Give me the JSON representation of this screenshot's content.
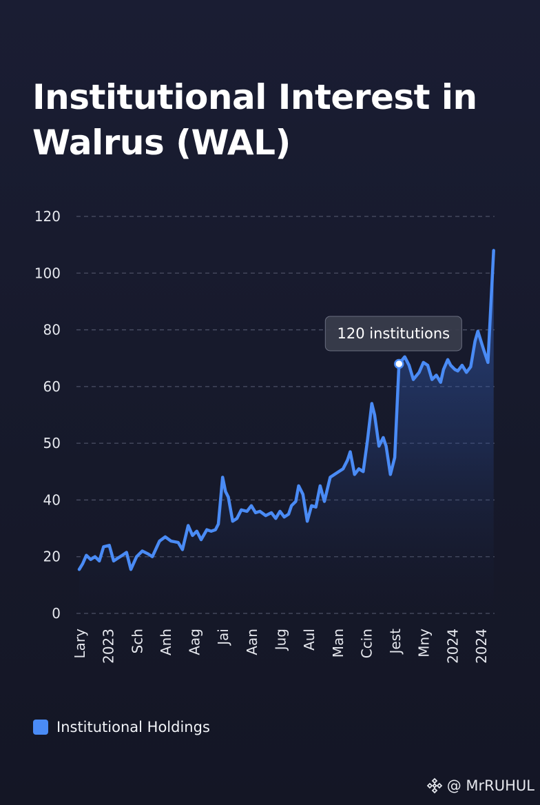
{
  "title_line1": "Institutional Interest in",
  "title_line2": "Walrus (WAL)",
  "legend": {
    "label": "Institutional Holdings",
    "color": "#4a8bf5"
  },
  "tooltip": {
    "text": "120 institutions"
  },
  "watermark": {
    "handle": "@ MrRUHUL",
    "icon": "binance-diamond-icon"
  },
  "colors": {
    "background": "#171a2c",
    "line": "#4a8bf5",
    "grid": "#4c5066",
    "tick_text": "#e6e8ee"
  },
  "chart_data": {
    "type": "area",
    "title": "Institutional Interest in Walrus (WAL)",
    "xlabel": "",
    "ylabel": "",
    "y_ticks": [
      "0",
      "20",
      "40",
      "50",
      "60",
      "80",
      "100",
      "120"
    ],
    "x_ticks": [
      "Lary",
      "2023",
      "Sch",
      "Anh",
      "Aag",
      "Jai",
      "Aan",
      "Jug",
      "Aul",
      "Man",
      "Ccin",
      "Jest",
      "Mny",
      "2024",
      "2024"
    ],
    "grid": true,
    "legend_position": "bottom-left",
    "series": [
      {
        "name": "Institutional Holdings",
        "note": "values in data units read against the printed tick scale (tick rows are evenly spaced); x = index along the time axis (0 = first tick, 14 = last tick)",
        "points": [
          [
            0.0,
            15.5
          ],
          [
            0.12,
            17.5
          ],
          [
            0.25,
            20.5
          ],
          [
            0.4,
            19.0
          ],
          [
            0.55,
            20.0
          ],
          [
            0.7,
            18.5
          ],
          [
            0.85,
            23.5
          ],
          [
            1.05,
            24.0
          ],
          [
            1.2,
            18.5
          ],
          [
            1.35,
            19.5
          ],
          [
            1.5,
            20.5
          ],
          [
            1.65,
            21.5
          ],
          [
            1.8,
            15.5
          ],
          [
            2.0,
            20.0
          ],
          [
            2.2,
            22.0
          ],
          [
            2.4,
            21.0
          ],
          [
            2.55,
            20.0
          ],
          [
            2.8,
            25.5
          ],
          [
            3.0,
            27.0
          ],
          [
            3.2,
            25.5
          ],
          [
            3.45,
            25.0
          ],
          [
            3.6,
            22.5
          ],
          [
            3.8,
            31.0
          ],
          [
            3.95,
            27.5
          ],
          [
            4.1,
            29.0
          ],
          [
            4.25,
            26.0
          ],
          [
            4.45,
            29.5
          ],
          [
            4.6,
            29.0
          ],
          [
            4.75,
            29.5
          ],
          [
            4.85,
            31.5
          ],
          [
            5.0,
            44.0
          ],
          [
            5.1,
            41.5
          ],
          [
            5.2,
            40.5
          ],
          [
            5.35,
            32.5
          ],
          [
            5.5,
            33.5
          ],
          [
            5.65,
            36.5
          ],
          [
            5.85,
            36.0
          ],
          [
            6.0,
            38.0
          ],
          [
            6.15,
            35.5
          ],
          [
            6.3,
            36.0
          ],
          [
            6.5,
            34.5
          ],
          [
            6.7,
            35.5
          ],
          [
            6.85,
            33.5
          ],
          [
            7.0,
            36.0
          ],
          [
            7.15,
            34.0
          ],
          [
            7.3,
            35.0
          ],
          [
            7.4,
            38.0
          ],
          [
            7.55,
            39.5
          ],
          [
            7.65,
            42.5
          ],
          [
            7.8,
            41.0
          ],
          [
            7.95,
            32.5
          ],
          [
            8.1,
            38.0
          ],
          [
            8.25,
            37.5
          ],
          [
            8.4,
            42.5
          ],
          [
            8.55,
            39.5
          ],
          [
            8.75,
            44.0
          ],
          [
            8.9,
            44.5
          ],
          [
            9.05,
            45.0
          ],
          [
            9.2,
            45.5
          ],
          [
            9.35,
            47.0
          ],
          [
            9.45,
            48.5
          ],
          [
            9.6,
            44.5
          ],
          [
            9.75,
            45.5
          ],
          [
            9.9,
            45.0
          ],
          [
            10.05,
            50.5
          ],
          [
            10.2,
            57.0
          ],
          [
            10.3,
            55.0
          ],
          [
            10.45,
            49.5
          ],
          [
            10.6,
            51.0
          ],
          [
            10.7,
            49.5
          ],
          [
            10.85,
            44.5
          ],
          [
            11.0,
            47.5
          ],
          [
            11.15,
            68.0
          ],
          [
            11.35,
            70.5
          ],
          [
            11.5,
            67.5
          ],
          [
            11.65,
            62.5
          ],
          [
            11.85,
            65.0
          ],
          [
            12.0,
            68.5
          ],
          [
            12.15,
            67.5
          ],
          [
            12.3,
            62.5
          ],
          [
            12.45,
            64.0
          ],
          [
            12.6,
            61.5
          ],
          [
            12.7,
            66.0
          ],
          [
            12.85,
            69.5
          ],
          [
            12.95,
            67.5
          ],
          [
            13.1,
            66.0
          ],
          [
            13.2,
            65.5
          ],
          [
            13.35,
            67.5
          ],
          [
            13.5,
            65.0
          ],
          [
            13.65,
            67.0
          ],
          [
            13.8,
            76.0
          ],
          [
            13.9,
            79.5
          ],
          [
            14.1,
            73.0
          ],
          [
            14.25,
            68.5
          ],
          [
            14.45,
            108.0
          ]
        ],
        "highlight": {
          "x": 11.15,
          "y": 68.0
        }
      }
    ]
  }
}
